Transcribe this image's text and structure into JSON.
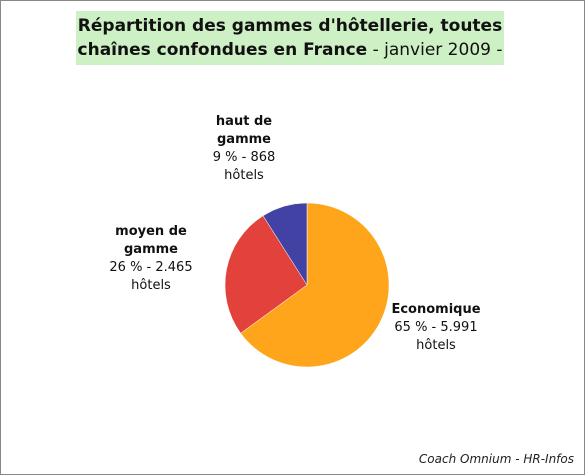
{
  "chart_data": {
    "type": "pie",
    "title": "Répartition des gammes d'hôtellerie, toutes chaînes confondues en France",
    "subtitle": "- janvier 2009 -",
    "categories": [
      "Economique",
      "moyen de gamme",
      "haut de gamme"
    ],
    "values": [
      65,
      26,
      9
    ],
    "value_labels": [
      "65 % - 5.991 hôtels",
      "26 % - 2.465 hôtels",
      "9 % - 868 hôtels"
    ],
    "colors": [
      "#ffa51c",
      "#e2423b",
      "#4142a3"
    ],
    "source": "Coach Omnium - HR-Infos"
  }
}
